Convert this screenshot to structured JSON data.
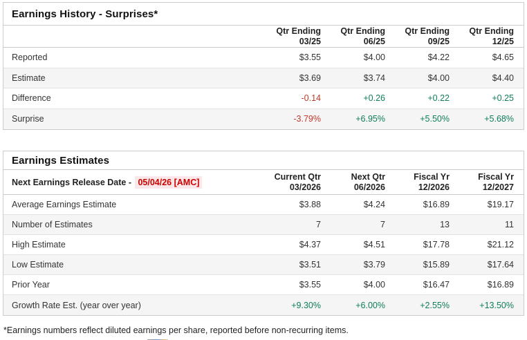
{
  "colors": {
    "positive": "#0e7d5a",
    "negative": "#c0392b",
    "release_date_text": "#cc0000",
    "release_date_bg": "#fbe7e7",
    "alt_row_bg": "#f5f5f5",
    "border": "#cccccc"
  },
  "earnings_history": {
    "title": "Earnings History - Surprises*",
    "columns": [
      {
        "line1": "Qtr Ending",
        "line2": "03/25"
      },
      {
        "line1": "Qtr Ending",
        "line2": "06/25"
      },
      {
        "line1": "Qtr Ending",
        "line2": "09/25"
      },
      {
        "line1": "Qtr Ending",
        "line2": "12/25"
      }
    ],
    "rows": [
      {
        "label": "Reported",
        "values": [
          "$3.55",
          "$4.00",
          "$4.22",
          "$4.65"
        ]
      },
      {
        "label": "Estimate",
        "values": [
          "$3.69",
          "$3.74",
          "$4.00",
          "$4.40"
        ]
      },
      {
        "label": "Difference",
        "values": [
          "-0.14",
          "+0.26",
          "+0.22",
          "+0.25"
        ],
        "styles": [
          "neg",
          "pos",
          "pos",
          "pos"
        ]
      },
      {
        "label": "Surprise",
        "values": [
          "-3.79%",
          "+6.95%",
          "+5.50%",
          "+5.68%"
        ],
        "styles": [
          "neg",
          "pos",
          "pos",
          "pos"
        ]
      }
    ]
  },
  "earnings_estimates": {
    "title": "Earnings Estimates",
    "release_label": "Next Earnings Release Date - ",
    "release_date": "05/04/26 [AMC]",
    "columns": [
      {
        "line1": "Current Qtr",
        "line2": "03/2026"
      },
      {
        "line1": "Next Qtr",
        "line2": "06/2026"
      },
      {
        "line1": "Fiscal Yr",
        "line2": "12/2026"
      },
      {
        "line1": "Fiscal Yr",
        "line2": "12/2027"
      }
    ],
    "rows": [
      {
        "label": "Average Earnings Estimate",
        "values": [
          "$3.88",
          "$4.24",
          "$16.89",
          "$19.17"
        ]
      },
      {
        "label": "Number of Estimates",
        "values": [
          "7",
          "7",
          "13",
          "11"
        ]
      },
      {
        "label": "High Estimate",
        "values": [
          "$4.37",
          "$4.51",
          "$17.78",
          "$21.12"
        ]
      },
      {
        "label": "Low Estimate",
        "values": [
          "$3.51",
          "$3.79",
          "$15.89",
          "$17.64"
        ]
      },
      {
        "label": "Prior Year",
        "values": [
          "$3.55",
          "$4.00",
          "$16.47",
          "$16.89"
        ]
      },
      {
        "label": "Growth Rate Est. (year over year)",
        "values": [
          "+9.30%",
          "+6.00%",
          "+2.55%",
          "+13.50%"
        ],
        "styles": [
          "pos",
          "pos",
          "pos",
          "pos"
        ]
      }
    ]
  },
  "footnote": "*Earnings numbers reflect diluted earnings per share, reported before non-recurring items."
}
